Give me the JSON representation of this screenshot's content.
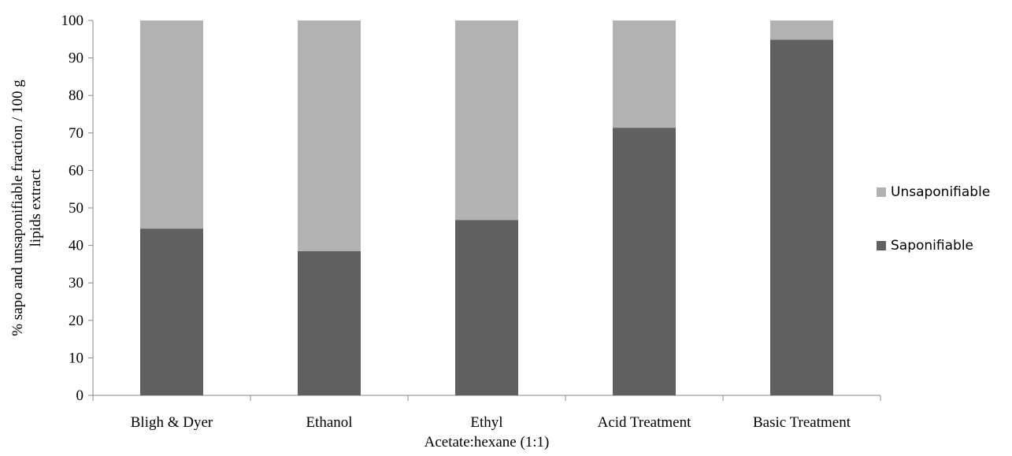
{
  "chart_data": {
    "type": "bar",
    "stacked": true,
    "categories": [
      [
        "Bligh & Dyer"
      ],
      [
        "Ethanol"
      ],
      [
        "Ethyl",
        "Acetate:hexane (1:1)"
      ],
      [
        "Acid Treatment"
      ],
      [
        "Basic Treatment"
      ]
    ],
    "series": [
      {
        "name": "Saponifiable",
        "values": [
          44.5,
          38.5,
          46.8,
          71.4,
          94.9
        ],
        "color": "#606060"
      },
      {
        "name": "Unsaponifiable",
        "values": [
          55.5,
          61.5,
          53.2,
          28.6,
          5.1
        ],
        "color": "#b2b2b2"
      }
    ],
    "legend_order": [
      "Unsaponifiable",
      "Saponifiable"
    ],
    "ylabel": [
      "% sapo and unsaponifiable  fraction / 100 g",
      "lipids extract"
    ],
    "xlabel": "",
    "ylim": [
      0,
      100
    ],
    "yticks": [
      0,
      10,
      20,
      30,
      40,
      50,
      60,
      70,
      80,
      90,
      100
    ],
    "grid": false,
    "legend_position": "right"
  }
}
